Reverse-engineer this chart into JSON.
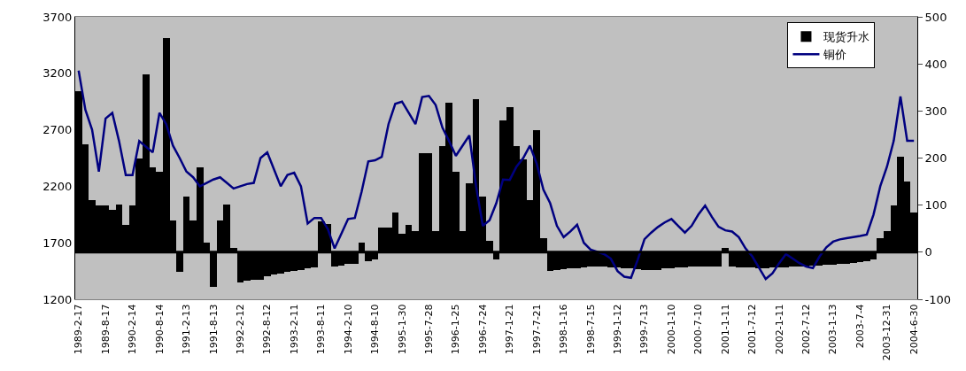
{
  "chart_data": {
    "type": "bar",
    "categories": [
      "1989-2-17",
      null,
      null,
      null,
      "1989-8-17",
      null,
      null,
      null,
      "1990-2-14",
      null,
      null,
      null,
      "1990-8-14",
      null,
      null,
      null,
      "1991-2-13",
      null,
      null,
      null,
      "1991-8-13",
      null,
      null,
      null,
      "1992-2-12",
      null,
      null,
      null,
      "1992-8-12",
      null,
      null,
      null,
      "1993-2-11",
      null,
      null,
      null,
      "1993-8-11",
      null,
      null,
      null,
      "1994-2-10",
      null,
      null,
      null,
      "1994-8-10",
      null,
      null,
      null,
      "1995-1-30",
      null,
      null,
      null,
      "1995-7-28",
      null,
      null,
      null,
      "1996-1-25",
      null,
      null,
      null,
      "1996-7-24",
      null,
      null,
      null,
      "1997-1-21",
      null,
      null,
      null,
      "1997-7-21",
      null,
      null,
      null,
      "1998-1-16",
      null,
      null,
      null,
      "1998-7-15",
      null,
      null,
      null,
      "1999-1-12",
      null,
      null,
      null,
      "1999-7-13",
      null,
      null,
      null,
      "2000-1-10",
      null,
      null,
      null,
      "2000-7-10",
      null,
      null,
      null,
      "2001-1-11",
      null,
      null,
      null,
      "2001-7-12",
      null,
      null,
      null,
      "2002-1-11",
      null,
      null,
      null,
      "2002-7-12",
      null,
      null,
      null,
      "2003-1-13",
      null,
      null,
      null,
      "2003-7-4",
      null,
      null,
      null,
      "2003-12-31",
      null,
      null,
      null,
      "2004-6-30"
    ],
    "series": [
      {
        "name": "现货升水",
        "axis": "y2",
        "color": "#000000",
        "values": [
          342,
          230,
          110,
          100,
          100,
          90,
          102,
          58,
          100,
          200,
          377,
          180,
          170,
          455,
          68,
          -42,
          118,
          68,
          180,
          20,
          -73,
          68,
          102,
          10,
          -65,
          -60,
          -58,
          -58,
          -52,
          -48,
          -45,
          -42,
          -40,
          -38,
          -35,
          -33,
          66,
          60,
          -30,
          -28,
          -25,
          -25,
          20,
          -20,
          -15,
          52,
          52,
          85,
          40,
          58,
          45,
          210,
          210,
          45,
          225,
          317,
          170,
          45,
          147,
          325,
          118,
          25,
          -15,
          280,
          308,
          225,
          197,
          110,
          260,
          30,
          -40,
          -37,
          -36,
          -35,
          -34,
          -32,
          -31,
          -30,
          -31,
          -32,
          -33,
          -34,
          -35,
          -36,
          -37,
          -37,
          -37,
          -35,
          -34,
          -33,
          -32,
          -31,
          -30,
          -30,
          -30,
          -30,
          10,
          -31,
          -32,
          -33,
          -33,
          -34,
          -34,
          -33,
          -33,
          -32,
          -31,
          -30,
          -30,
          -29,
          -28,
          -27,
          -26,
          -25,
          -24,
          -22,
          -21,
          -20,
          -15,
          30,
          45,
          100,
          202,
          150,
          85
        ]
      },
      {
        "name": "铜价",
        "type": "line",
        "color": "#000080",
        "values": [
          3224,
          2878,
          2700,
          2330,
          2800,
          2850,
          2600,
          2300,
          2300,
          2600,
          2550,
          2500,
          2850,
          2750,
          2560,
          2450,
          2330,
          2280,
          2200,
          2230,
          2260,
          2280,
          2230,
          2180,
          2200,
          2220,
          2230,
          2450,
          2500,
          2350,
          2200,
          2300,
          2320,
          2200,
          1870,
          1920,
          1920,
          1820,
          1650,
          1780,
          1911,
          1920,
          2150,
          2420,
          2430,
          2460,
          2750,
          2930,
          2950,
          2850,
          2750,
          2990,
          3000,
          2920,
          2720,
          2600,
          2470,
          2560,
          2650,
          2200,
          1850,
          1900,
          2050,
          2260,
          2257,
          2374,
          2450,
          2560,
          2400,
          2170,
          2050,
          1850,
          1750,
          1800,
          1860,
          1700,
          1640,
          1620,
          1600,
          1560,
          1450,
          1400,
          1390,
          1550,
          1732,
          1790,
          1840,
          1880,
          1911,
          1850,
          1790,
          1850,
          1950,
          2029,
          1930,
          1842,
          1810,
          1800,
          1750,
          1650,
          1580,
          1480,
          1380,
          1430,
          1520,
          1600,
          1560,
          1520,
          1490,
          1476,
          1580,
          1660,
          1710,
          1730,
          1740,
          1750,
          1760,
          1773,
          1950,
          2200,
          2374,
          2602,
          2996,
          2602,
          2602
        ]
      }
    ],
    "ylim": [
      1200,
      3700
    ],
    "yticks": [
      1200,
      1700,
      2200,
      2700,
      3200,
      3700
    ],
    "y2lim": [
      -100,
      500
    ],
    "y2ticks": [
      -100,
      0,
      100,
      200,
      300,
      400,
      500
    ],
    "ref_lines": [
      {
        "axis": "y2",
        "value": 0,
        "color": "#000000"
      }
    ],
    "legend": "top right"
  }
}
